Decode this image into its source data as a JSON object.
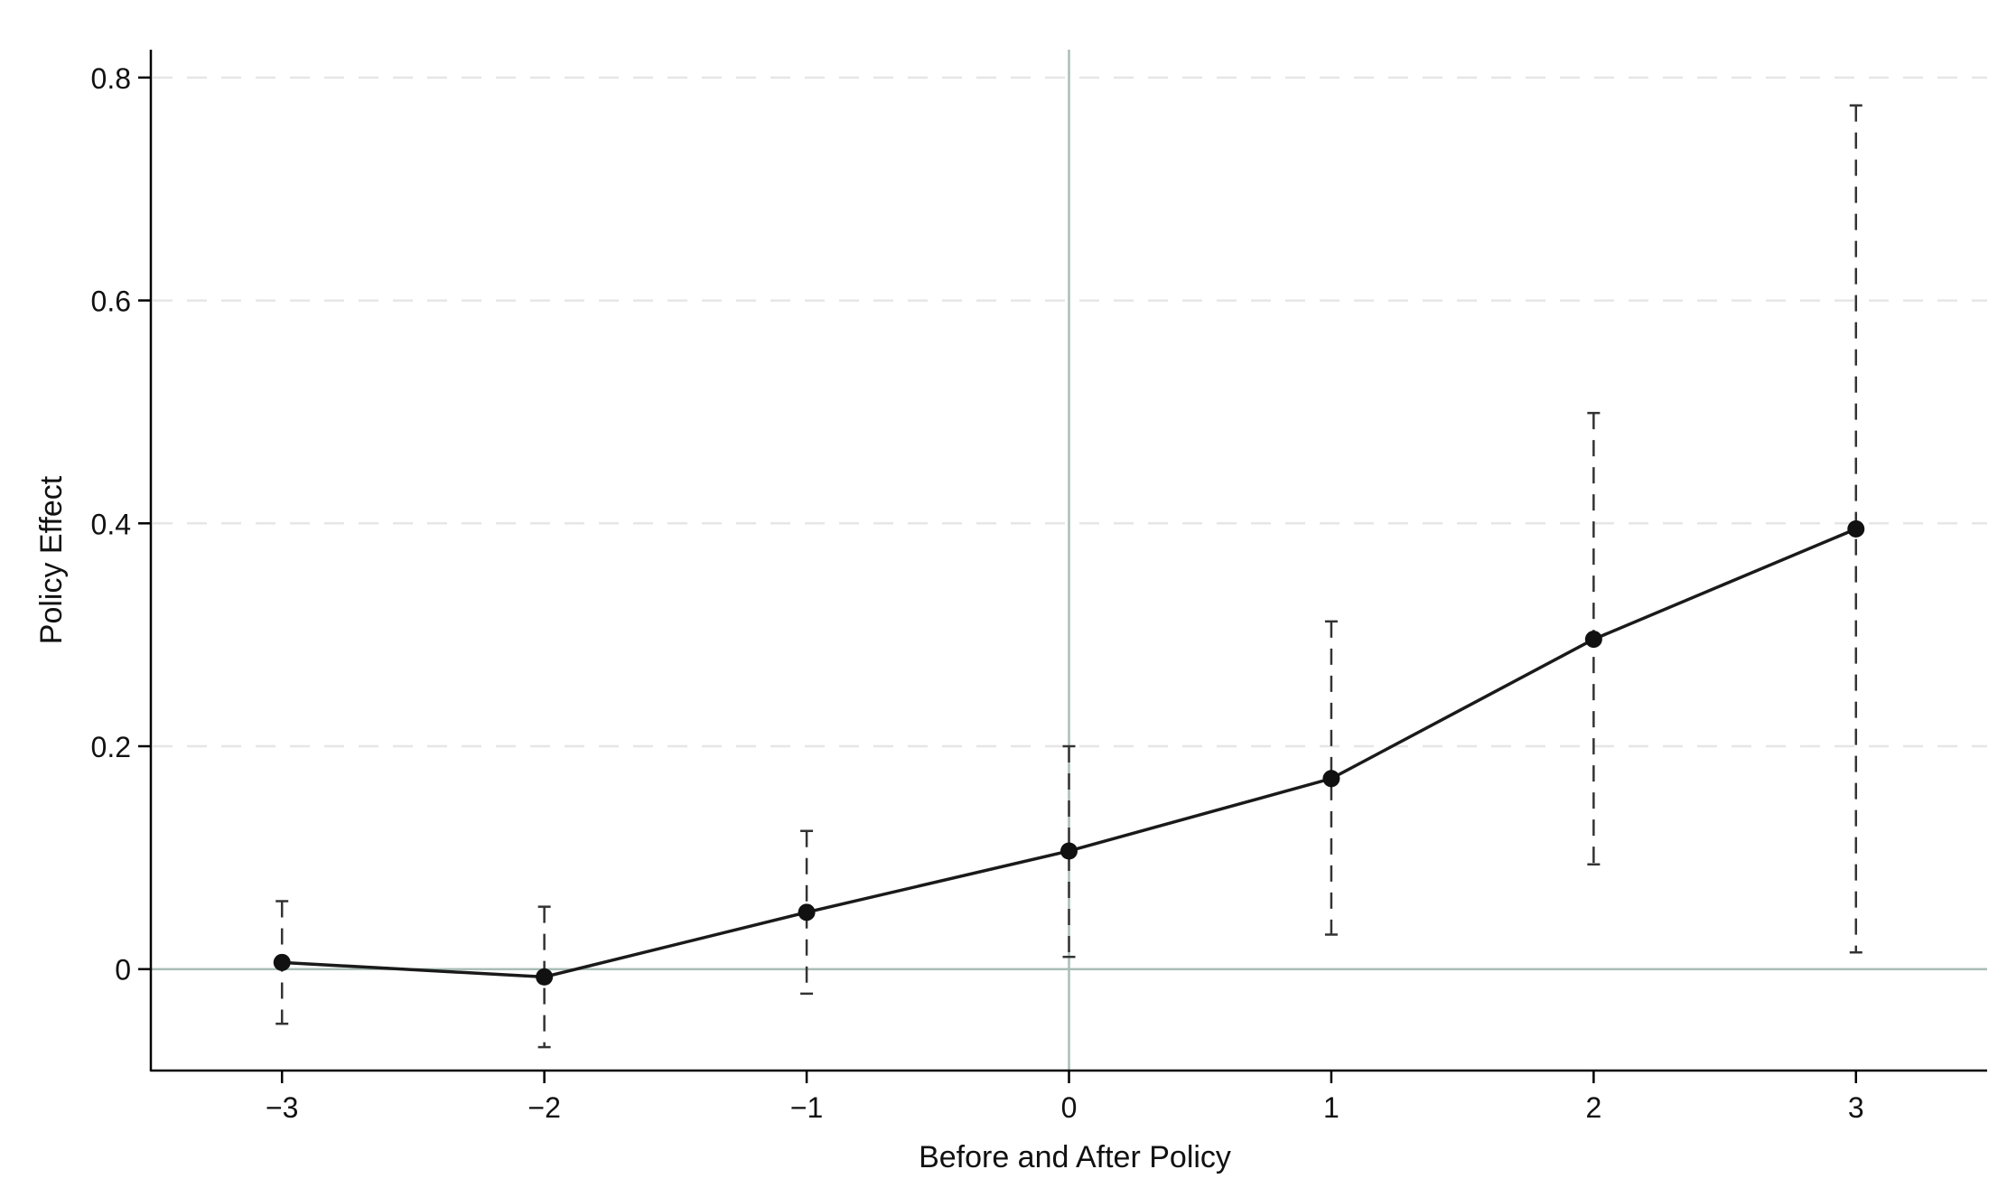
{
  "chart_data": {
    "type": "line",
    "title": "",
    "xlabel": "Before and After Policy",
    "ylabel": "Policy Effect",
    "x": [
      -3,
      -2,
      -1,
      0,
      1,
      2,
      3
    ],
    "x_tick_labels": [
      "−3",
      "−2",
      "−1",
      "0",
      "1",
      "2",
      "3"
    ],
    "y_ticks": [
      0,
      0.2,
      0.4,
      0.6,
      0.8
    ],
    "y_tick_labels": [
      "0",
      "0.2",
      "0.4",
      "0.6",
      "0.8"
    ],
    "xlim": [
      -3.5,
      3.5
    ],
    "ylim": [
      -0.091,
      0.825
    ],
    "grid": "horizontal dashed",
    "reference_lines": {
      "x": 0,
      "y": 0
    },
    "series": [
      {
        "values": [
          0.006,
          -0.007,
          0.051,
          0.106,
          0.171,
          0.296,
          0.395
        ],
        "ci_lower": [
          -0.049,
          -0.07,
          -0.022,
          0.011,
          0.031,
          0.094,
          0.015
        ],
        "ci_upper": [
          0.061,
          0.056,
          0.124,
          0.2,
          0.312,
          0.499,
          0.775
        ]
      }
    ],
    "colors": {
      "line": "#1a1a1a",
      "marker": "#111111",
      "error_bar": "#333333",
      "grid": "#e6e6e6",
      "reference_line": "#a9bdb7",
      "axis": "#000000"
    }
  }
}
